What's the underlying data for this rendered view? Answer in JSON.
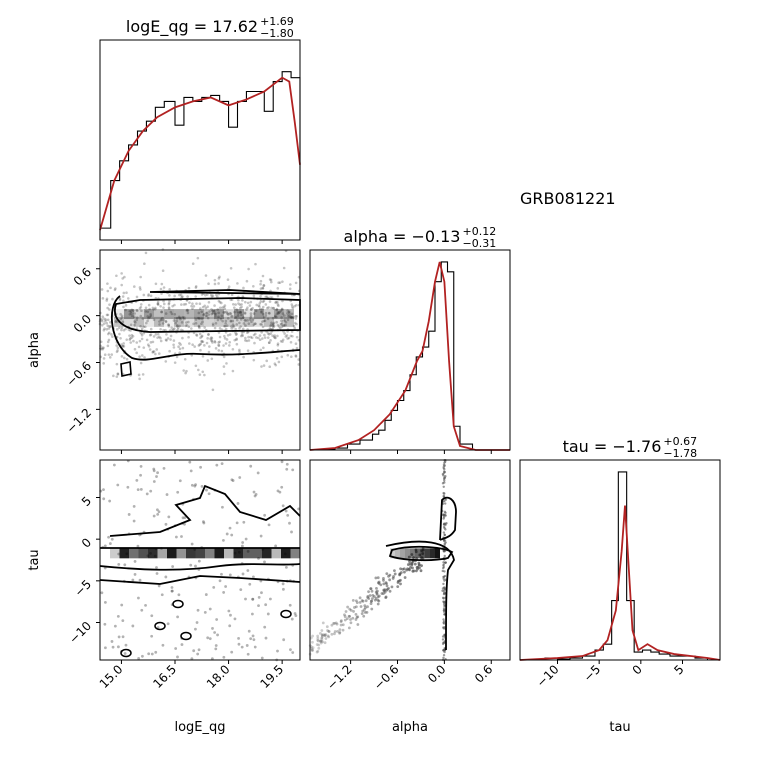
{
  "chart_data": {
    "type": "corner",
    "label": "GRB081221",
    "colors": {
      "kde": "#b22222",
      "hist": "#000000",
      "scatter": "#555555",
      "frame": "#000000"
    },
    "params": [
      {
        "name": "logE_qg",
        "median": "17.62",
        "plus": "+1.69",
        "minus": "−1.80",
        "range": [
          14.4,
          20.0
        ],
        "ticks": [
          15.0,
          16.5,
          18.0,
          19.5
        ],
        "tick_labels": [
          "15.0",
          "16.5",
          "18.0",
          "19.5"
        ]
      },
      {
        "name": "alpha",
        "median": "−0.13",
        "plus": "+0.12",
        "minus": "−0.31",
        "range": [
          -1.72,
          0.84
        ],
        "ticks": [
          -1.2,
          -0.6,
          0.0,
          0.6
        ],
        "tick_labels": [
          "−1.2",
          "−0.6",
          "0.0",
          "0.6"
        ]
      },
      {
        "name": "tau",
        "median": "−1.76",
        "plus": "+0.67",
        "minus": "−1.78",
        "range": [
          -14.5,
          9.5
        ],
        "ticks": [
          -10,
          -5,
          0,
          5
        ],
        "tick_labels": [
          "−10",
          "−5",
          "0",
          "5"
        ]
      }
    ],
    "hist_logE": {
      "edges": [
        14.4,
        14.7,
        14.95,
        15.2,
        15.45,
        15.7,
        15.95,
        16.2,
        16.5,
        16.75,
        17.0,
        17.25,
        17.5,
        17.75,
        18.0,
        18.25,
        18.5,
        18.75,
        19.0,
        19.25,
        19.5,
        19.75,
        20.0
      ],
      "counts": [
        0.06,
        0.3,
        0.4,
        0.48,
        0.55,
        0.6,
        0.67,
        0.7,
        0.58,
        0.72,
        0.7,
        0.72,
        0.73,
        0.7,
        0.57,
        0.7,
        0.75,
        0.75,
        0.65,
        0.8,
        0.85,
        0.82
      ],
      "kde": [
        [
          14.4,
          0.05
        ],
        [
          14.8,
          0.3
        ],
        [
          15.2,
          0.45
        ],
        [
          15.6,
          0.55
        ],
        [
          16.0,
          0.62
        ],
        [
          16.5,
          0.67
        ],
        [
          17.0,
          0.7
        ],
        [
          17.5,
          0.72
        ],
        [
          18.0,
          0.68
        ],
        [
          18.5,
          0.71
        ],
        [
          19.0,
          0.75
        ],
        [
          19.5,
          0.82
        ],
        [
          19.7,
          0.8
        ],
        [
          19.85,
          0.6
        ],
        [
          20.0,
          0.38
        ]
      ]
    },
    "hist_alpha": {
      "edges": [
        -1.72,
        -1.56,
        -1.4,
        -1.24,
        -1.08,
        -0.92,
        -0.84,
        -0.76,
        -0.68,
        -0.6,
        -0.52,
        -0.44,
        -0.36,
        -0.28,
        -0.2,
        -0.12,
        -0.04,
        0.04,
        0.12,
        0.2,
        0.36,
        0.52,
        0.84
      ],
      "counts": [
        0.0,
        0.005,
        0.01,
        0.03,
        0.05,
        0.08,
        0.1,
        0.15,
        0.2,
        0.25,
        0.3,
        0.38,
        0.47,
        0.52,
        0.6,
        0.85,
        0.95,
        0.9,
        0.12,
        0.03,
        0.0,
        0.0
      ],
      "kde": [
        [
          -1.72,
          0.0
        ],
        [
          -1.4,
          0.01
        ],
        [
          -1.1,
          0.05
        ],
        [
          -0.9,
          0.1
        ],
        [
          -0.7,
          0.18
        ],
        [
          -0.5,
          0.3
        ],
        [
          -0.35,
          0.45
        ],
        [
          -0.28,
          0.5
        ],
        [
          -0.2,
          0.65
        ],
        [
          -0.12,
          0.85
        ],
        [
          -0.06,
          0.95
        ],
        [
          0.0,
          0.85
        ],
        [
          0.06,
          0.45
        ],
        [
          0.12,
          0.12
        ],
        [
          0.2,
          0.02
        ],
        [
          0.4,
          0.0
        ],
        [
          0.84,
          0.0
        ]
      ]
    },
    "hist_tau": {
      "edges": [
        -14.5,
        -13.0,
        -11.5,
        -10.0,
        -8.5,
        -7.0,
        -5.5,
        -4.5,
        -3.5,
        -2.7,
        -1.7,
        -0.8,
        0.2,
        1.2,
        2.2,
        3.5,
        5.0,
        6.5,
        8.0,
        9.5
      ],
      "counts": [
        0.0,
        0.005,
        0.01,
        0.005,
        0.01,
        0.02,
        0.05,
        0.08,
        0.3,
        0.95,
        0.3,
        0.04,
        0.05,
        0.04,
        0.03,
        0.02,
        0.02,
        0.01,
        0.0
      ],
      "kde": [
        [
          -14.5,
          0.0
        ],
        [
          -10.0,
          0.01
        ],
        [
          -7.0,
          0.02
        ],
        [
          -5.0,
          0.05
        ],
        [
          -4.0,
          0.1
        ],
        [
          -3.0,
          0.25
        ],
        [
          -2.3,
          0.55
        ],
        [
          -1.9,
          0.78
        ],
        [
          -1.5,
          0.5
        ],
        [
          -1.0,
          0.15
        ],
        [
          -0.3,
          0.05
        ],
        [
          0.8,
          0.08
        ],
        [
          2.0,
          0.05
        ],
        [
          4.0,
          0.03
        ],
        [
          6.0,
          0.02
        ],
        [
          8.0,
          0.01
        ],
        [
          9.5,
          0.0
        ]
      ]
    }
  }
}
